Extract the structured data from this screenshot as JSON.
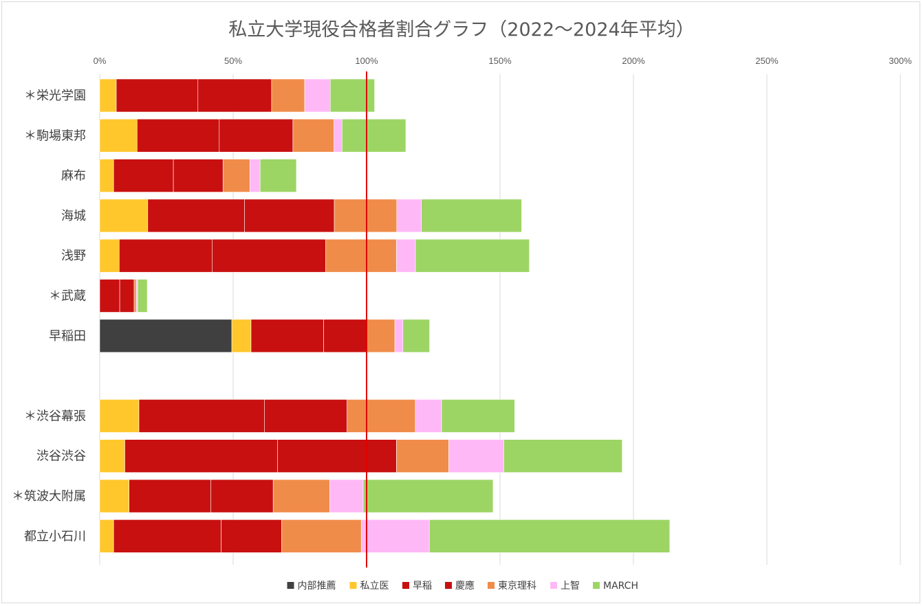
{
  "chart_data": {
    "type": "bar",
    "orientation": "horizontal",
    "stacked": true,
    "title": "私立大学現役合格者割合グラフ（2022〜2024年平均）",
    "xlabel": "",
    "ylabel": "",
    "xlim": [
      0,
      300
    ],
    "x_ticks": [
      "0%",
      "50%",
      "100%",
      "150%",
      "200%",
      "250%",
      "300%"
    ],
    "grid": "vertical",
    "reference_line": {
      "value": 100,
      "color": "#e00000"
    },
    "legend_position": "bottom",
    "categories": [
      "＊栄光学園",
      "＊駒場東邦",
      "麻布",
      "海城",
      "浅野",
      "＊武蔵",
      "早稲田",
      "",
      "＊渋谷幕張",
      "渋谷渋谷",
      "＊筑波大附属",
      "都立小石川"
    ],
    "series": [
      {
        "name": "内部推薦",
        "color": "#404040",
        "values": [
          0,
          0,
          0,
          0,
          0,
          0,
          49.5,
          0,
          0,
          0,
          0,
          0
        ]
      },
      {
        "name": "私立医",
        "color": "#ffc72c",
        "values": [
          6.2,
          14,
          5.2,
          18,
          7.3,
          0,
          7.2,
          0,
          14.7,
          9.4,
          11,
          5.2
        ]
      },
      {
        "name": "早稲",
        "color": "#c81010",
        "values": [
          30.6,
          30.8,
          22.4,
          36.3,
          34.8,
          7.5,
          27.2,
          0,
          47,
          57.2,
          30.6,
          40.3
        ]
      },
      {
        "name": "慶應",
        "color": "#c81010",
        "values": [
          27.6,
          27.6,
          18.6,
          33.6,
          42.6,
          5.4,
          16.1,
          0,
          31,
          44.6,
          23.4,
          22.7
        ]
      },
      {
        "name": "東京理科",
        "color": "#f08c4a",
        "values": [
          12.4,
          15.4,
          10.1,
          23.4,
          26.5,
          0.8,
          10.6,
          0,
          25.6,
          19.6,
          21.2,
          29.8
        ]
      },
      {
        "name": "上智",
        "color": "#ffb8f6",
        "values": [
          9.6,
          3,
          3.8,
          9.2,
          7.1,
          0.5,
          3,
          0,
          9.8,
          20.6,
          12.5,
          25.5
        ]
      },
      {
        "name": "MARCH",
        "color": "#9dd565",
        "values": [
          16.6,
          23.9,
          13.6,
          37.6,
          42.7,
          3.6,
          10,
          0,
          27.4,
          44.4,
          48.7,
          90.1
        ]
      }
    ]
  }
}
